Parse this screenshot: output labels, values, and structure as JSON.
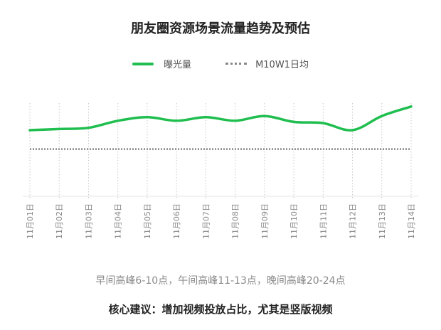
{
  "chart_data": {
    "type": "line",
    "title": "朋友圈资源场景流量趋势及预估",
    "x": [
      "11月01日",
      "11月02日",
      "11月03日",
      "11月04日",
      "11月05日",
      "11月06日",
      "11月07日",
      "11月08日",
      "11月09日",
      "11月10日",
      "11月11日",
      "11月12日",
      "11月13日",
      "11月14日"
    ],
    "series": [
      {
        "name": "曝光量",
        "color": "#1fbe4f",
        "style": "solid",
        "values": [
          56,
          57,
          58,
          64,
          67,
          64,
          67,
          64,
          68,
          63,
          62,
          56,
          68,
          76
        ]
      },
      {
        "name": "M10W1日均",
        "color": "#888888",
        "style": "dotted",
        "values": [
          40,
          40,
          40,
          40,
          40,
          40,
          40,
          40,
          40,
          40,
          40,
          40,
          40,
          40
        ]
      }
    ],
    "ylim": [
      0,
      100
    ],
    "grid": "vertical-dotted",
    "legend": "top-center",
    "xlabel": "",
    "ylabel": ""
  },
  "footer": {
    "note": "早间高峰6-10点，午间高峰11-13点，晚间高峰20-24点",
    "advice": "核心建议：增加视频投放占比，尤其是竖版视频"
  }
}
